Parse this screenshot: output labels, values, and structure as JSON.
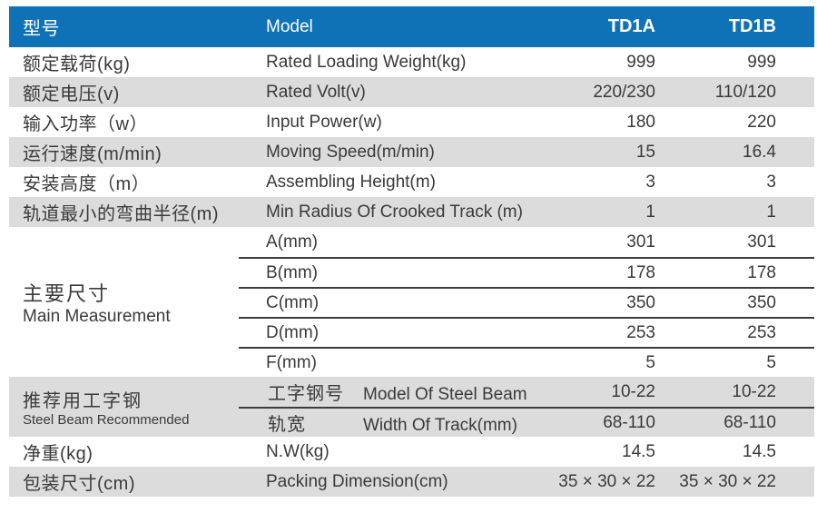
{
  "colors": {
    "header_bg": "#0f72b7",
    "stripe": "#dcdcdc",
    "text": "#3a3a3a",
    "divider": "#3c3c3c"
  },
  "table": {
    "header": {
      "col_zh": "型号",
      "col_en": "Model",
      "col_a": "TD1A",
      "col_b": "TD1B"
    },
    "rows": [
      {
        "zh": "额定载荷(kg)",
        "en": "Rated Loading Weight(kg)",
        "a": "999",
        "b": "999"
      },
      {
        "zh": "额定电压(v)",
        "en": "Rated Volt(v)",
        "a": "220/230",
        "b": "110/120"
      },
      {
        "zh": "输入功率（w）",
        "en": "Input Power(w)",
        "a": "180",
        "b": "220"
      },
      {
        "zh": "运行速度(m/min)",
        "en": "Moving Speed(m/min)",
        "a": "15",
        "b": "16.4"
      },
      {
        "zh": "安装高度（m）",
        "en": "Assembling Height(m)",
        "a": "3",
        "b": "3"
      },
      {
        "zh": "轨道最小的弯曲半径(m)",
        "en": "Min Radius Of Crooked Track (m)",
        "a": "1",
        "b": "1"
      }
    ],
    "main_measurement": {
      "zh": "主要尺寸",
      "en": "Main Measurement",
      "subrows": [
        {
          "label": "A(mm)",
          "a": "301",
          "b": "301"
        },
        {
          "label": "B(mm)",
          "a": "178",
          "b": "178"
        },
        {
          "label": "C(mm)",
          "a": "350",
          "b": "350"
        },
        {
          "label": "D(mm)",
          "a": "253",
          "b": "253"
        },
        {
          "label": "F(mm)",
          "a": "5",
          "b": "5"
        }
      ]
    },
    "steel_beam": {
      "zh": "推荐用工字钢",
      "en": "Steel Beam Recommended",
      "subrows": [
        {
          "zh": "工字钢号",
          "en": "Model Of Steel Beam",
          "a": "10-22",
          "b": "10-22"
        },
        {
          "zh": "轨宽",
          "en": "Width Of Track(mm)",
          "a": "68-110",
          "b": "68-110"
        }
      ]
    },
    "footer_rows": [
      {
        "zh": "净重(kg)",
        "en": "N.W(kg)",
        "a": "14.5",
        "b": "14.5"
      },
      {
        "zh": "包装尺寸(cm)",
        "en": "Packing Dimension(cm)",
        "a": "35 × 30 × 22",
        "b": "35 × 30 × 22"
      }
    ]
  }
}
